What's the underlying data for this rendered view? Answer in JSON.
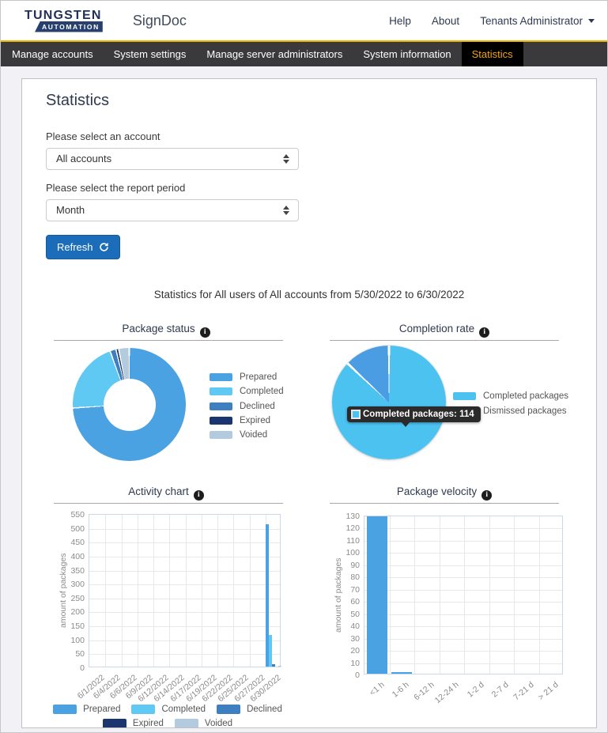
{
  "header": {
    "logo_primary": "TUNGSTEN",
    "logo_secondary": "AUTOMATION",
    "app_name": "SignDoc",
    "links": {
      "help": "Help",
      "about": "About"
    },
    "user_menu": "Tenants Administrator"
  },
  "nav": {
    "tabs": [
      {
        "label": "Manage accounts",
        "active": false
      },
      {
        "label": "System settings",
        "active": false
      },
      {
        "label": "Manage server administrators",
        "active": false
      },
      {
        "label": "System information",
        "active": false
      },
      {
        "label": "Statistics",
        "active": true
      }
    ]
  },
  "filters": {
    "page_title": "Statistics",
    "account_label": "Please select an account",
    "account_value": "All accounts",
    "period_label": "Please select the report period",
    "period_value": "Month",
    "refresh_label": "Refresh"
  },
  "summary": "Statistics for All users of All accounts from 5/30/2022 to 6/30/2022",
  "tooltip": {
    "text": "Completed packages: 114",
    "swatch_color": "#4cc2f1"
  },
  "colors": {
    "brand_gold": "#f0b200",
    "nav_active_text": "#f0a30a",
    "button_blue": "#1b6db9",
    "brand_navy": "#22305c"
  },
  "chart_data": [
    {
      "id": "package_status",
      "type": "pie",
      "variant": "donut",
      "title": "Package status",
      "labels": [
        "Prepared",
        "Completed",
        "Declined",
        "Expired",
        "Voided"
      ],
      "values_est_pct": [
        74,
        20.5,
        1.7,
        0.8,
        3.0
      ],
      "colors": [
        "#4ba2e2",
        "#5fc9f3",
        "#3d7fc1",
        "#1b356e",
        "#b3cbde"
      ],
      "legend_position": "right"
    },
    {
      "id": "completion_rate",
      "type": "pie",
      "title": "Completion rate",
      "labels": [
        "Completed packages",
        "Dismissed packages"
      ],
      "values": [
        114,
        17
      ],
      "colors": [
        "#4cc2f1",
        "#4a9de2"
      ],
      "legend_position": "right"
    },
    {
      "id": "activity_chart",
      "type": "bar",
      "title": "Activity chart",
      "categories": [
        "6/1/2022",
        "6/4/2022",
        "6/6/2022",
        "6/9/2022",
        "6/12/2022",
        "6/14/2022",
        "6/17/2022",
        "6/19/2022",
        "6/22/2022",
        "6/25/2022",
        "6/27/2022",
        "6/30/2022"
      ],
      "series": [
        {
          "name": "Prepared",
          "color": "#4ba2e2",
          "values": [
            0,
            0,
            0,
            0,
            0,
            0,
            0,
            0,
            0,
            0,
            0,
            510
          ]
        },
        {
          "name": "Completed",
          "color": "#5fc9f3",
          "values": [
            0,
            0,
            0,
            0,
            0,
            0,
            0,
            0,
            0,
            0,
            0,
            112
          ]
        },
        {
          "name": "Declined",
          "color": "#3d7fc1",
          "values": [
            0,
            0,
            0,
            0,
            0,
            0,
            0,
            0,
            0,
            0,
            0,
            8
          ]
        },
        {
          "name": "Expired",
          "color": "#1b356e",
          "values": [
            0,
            0,
            0,
            0,
            0,
            0,
            0,
            0,
            0,
            0,
            0,
            0
          ]
        },
        {
          "name": "Voided",
          "color": "#b3cbde",
          "values": [
            0,
            0,
            0,
            0,
            0,
            0,
            0,
            0,
            0,
            0,
            0,
            4
          ]
        }
      ],
      "ylabel": "amount of packages",
      "ylim": [
        0,
        550
      ],
      "ytick": 50,
      "grid": true,
      "legend_position": "bottom"
    },
    {
      "id": "package_velocity",
      "type": "bar",
      "title": "Package velocity",
      "categories": [
        "<1 h",
        "1-6 h",
        "6-12 h",
        "12-24 h",
        "1-2 d",
        "2-7 d",
        "7-21 d",
        "> 21 d"
      ],
      "values": [
        129,
        1,
        0,
        0,
        0,
        0,
        0,
        0
      ],
      "color": "#4ba2e2",
      "ylabel": "amount of packages",
      "ylim": [
        0,
        130
      ],
      "ytick": 10,
      "grid": true,
      "legend_position": "none"
    }
  ]
}
